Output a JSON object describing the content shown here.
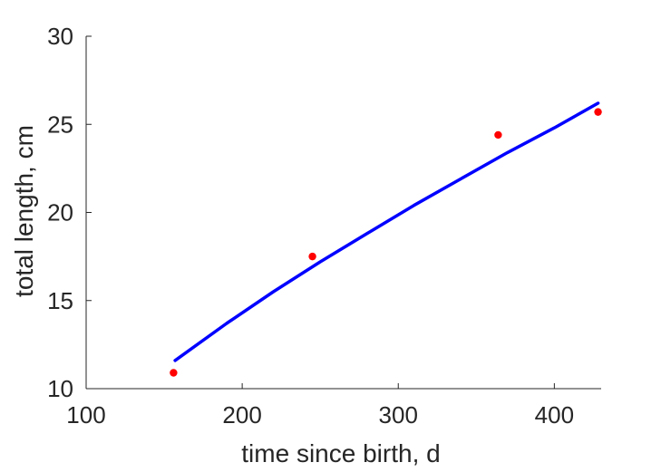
{
  "chart_data": {
    "type": "scatter",
    "title": "",
    "xlabel": "time since birth, d",
    "ylabel": "total length, cm",
    "xlim": [
      100,
      430
    ],
    "ylim": [
      10,
      30
    ],
    "xticks": [
      100,
      200,
      300,
      400
    ],
    "yticks": [
      10,
      15,
      20,
      25,
      30
    ],
    "grid": false,
    "series": [
      {
        "kind": "points",
        "color": "#ff0000",
        "x": [
          156,
          245,
          364,
          428
        ],
        "y": [
          10.9,
          17.5,
          24.4,
          25.7
        ]
      },
      {
        "kind": "line",
        "color": "#0000ff",
        "x": [
          157,
          190,
          220,
          250,
          280,
          310,
          340,
          370,
          400,
          428
        ],
        "y": [
          11.6,
          13.7,
          15.5,
          17.2,
          18.8,
          20.4,
          21.9,
          23.4,
          24.8,
          26.2
        ]
      }
    ]
  }
}
